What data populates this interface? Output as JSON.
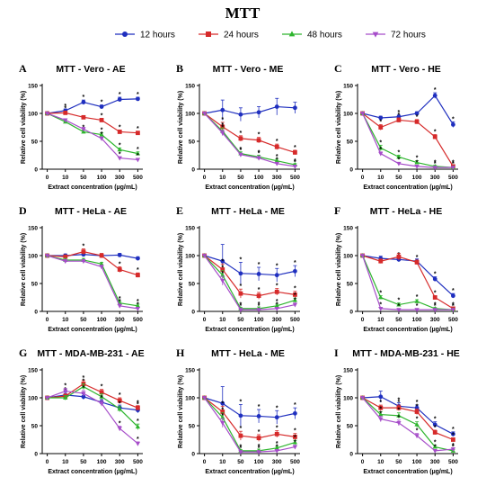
{
  "figure": {
    "title": "MTT",
    "legend": [
      {
        "name": "12 hours",
        "color": "#1f2fbf",
        "marker": "circle"
      },
      {
        "name": "24 hours",
        "color": "#d62a2a",
        "marker": "square"
      },
      {
        "name": "48 hours",
        "color": "#2db52d",
        "marker": "triangle"
      },
      {
        "name": "72 hours",
        "color": "#a64dc9",
        "marker": "triangle-down"
      }
    ]
  },
  "chart_data": [
    {
      "letter": "A",
      "title": "MTT - Vero - AE",
      "type": "line",
      "xlabel": "Extract concentration (µg/mL)",
      "ylabel": "Relative cell viability (%)",
      "categories": [
        "0",
        "10",
        "50",
        "100",
        "300",
        "500"
      ],
      "ylim": [
        0,
        150
      ],
      "yticks": [
        0,
        50,
        100,
        150
      ],
      "series": [
        {
          "name": "12 hours",
          "values": [
            100,
            105,
            120,
            112,
            125,
            126
          ],
          "err": [
            0,
            3,
            4,
            3,
            4,
            3
          ],
          "stars": [
            0,
            1,
            1,
            1,
            1,
            1
          ]
        },
        {
          "name": "24 hours",
          "values": [
            100,
            101,
            93,
            88,
            67,
            65
          ],
          "err": [
            0,
            3,
            3,
            3,
            3,
            3
          ],
          "stars": [
            0,
            1,
            0,
            1,
            1,
            1
          ]
        },
        {
          "name": "48 hours",
          "values": [
            100,
            85,
            67,
            62,
            35,
            28
          ],
          "err": [
            0,
            2,
            3,
            3,
            3,
            3
          ],
          "stars": [
            0,
            0,
            1,
            1,
            1,
            1
          ]
        },
        {
          "name": "72 hours",
          "values": [
            100,
            88,
            72,
            55,
            20,
            17
          ],
          "err": [
            0,
            2,
            3,
            3,
            2,
            2
          ],
          "stars": [
            0,
            0,
            0,
            1,
            1,
            1
          ]
        }
      ]
    },
    {
      "letter": "B",
      "title": "MTT - Vero - ME",
      "type": "line",
      "xlabel": "Extract concentration (µg/mL)",
      "ylabel": "Relative cell viability (%)",
      "categories": [
        "0",
        "10",
        "50",
        "100",
        "300",
        "500"
      ],
      "ylim": [
        0,
        150
      ],
      "yticks": [
        0,
        50,
        100,
        150
      ],
      "series": [
        {
          "name": "12 hours",
          "values": [
            100,
            106,
            98,
            102,
            112,
            110
          ],
          "err": [
            0,
            18,
            12,
            10,
            15,
            10
          ],
          "stars": [
            0,
            0,
            0,
            0,
            0,
            0
          ]
        },
        {
          "name": "24 hours",
          "values": [
            100,
            76,
            55,
            52,
            40,
            30
          ],
          "err": [
            0,
            8,
            5,
            5,
            5,
            4
          ],
          "stars": [
            0,
            1,
            1,
            1,
            1,
            1
          ]
        },
        {
          "name": "48 hours",
          "values": [
            100,
            68,
            28,
            22,
            15,
            8
          ],
          "err": [
            0,
            6,
            3,
            3,
            3,
            2
          ],
          "stars": [
            0,
            1,
            1,
            1,
            1,
            1
          ]
        },
        {
          "name": "72 hours",
          "values": [
            100,
            65,
            26,
            20,
            10,
            5
          ],
          "err": [
            0,
            5,
            3,
            3,
            2,
            2
          ],
          "stars": [
            0,
            1,
            1,
            1,
            1,
            1
          ]
        }
      ]
    },
    {
      "letter": "C",
      "title": "MTT - Vero - HE",
      "type": "line",
      "xlabel": "Extract concentration (µg/mL)",
      "ylabel": "Relative cell viability (%)",
      "categories": [
        "0",
        "10",
        "50",
        "100",
        "300",
        "500"
      ],
      "ylim": [
        0,
        150
      ],
      "yticks": [
        0,
        50,
        100,
        150
      ],
      "series": [
        {
          "name": "12 hours",
          "values": [
            100,
            92,
            94,
            100,
            132,
            80
          ],
          "err": [
            0,
            3,
            3,
            3,
            5,
            5
          ],
          "stars": [
            0,
            0,
            1,
            0,
            1,
            1
          ]
        },
        {
          "name": "24 hours",
          "values": [
            100,
            75,
            88,
            85,
            58,
            5
          ],
          "err": [
            0,
            5,
            4,
            4,
            4,
            2
          ],
          "stars": [
            0,
            1,
            1,
            1,
            1,
            1
          ]
        },
        {
          "name": "48 hours",
          "values": [
            100,
            38,
            22,
            12,
            5,
            3
          ],
          "err": [
            0,
            5,
            3,
            3,
            2,
            2
          ],
          "stars": [
            0,
            1,
            1,
            1,
            1,
            1
          ]
        },
        {
          "name": "72 hours",
          "values": [
            100,
            28,
            10,
            5,
            3,
            3
          ],
          "err": [
            0,
            3,
            2,
            2,
            2,
            2
          ],
          "stars": [
            0,
            1,
            1,
            1,
            1,
            1
          ]
        }
      ]
    },
    {
      "letter": "D",
      "title": "MTT - HeLa - AE",
      "type": "line",
      "xlabel": "Extract concentration (µg/mL)",
      "ylabel": "Relative cell viability (%)",
      "categories": [
        "0",
        "10",
        "50",
        "100",
        "300",
        "500"
      ],
      "ylim": [
        0,
        150
      ],
      "yticks": [
        0,
        50,
        100,
        150
      ],
      "series": [
        {
          "name": "12 hours",
          "values": [
            100,
            100,
            102,
            100,
            101,
            95
          ],
          "err": [
            0,
            3,
            3,
            3,
            3,
            3
          ],
          "stars": [
            0,
            0,
            0,
            0,
            0,
            0
          ]
        },
        {
          "name": "24 hours",
          "values": [
            100,
            98,
            107,
            100,
            75,
            65
          ],
          "err": [
            0,
            3,
            5,
            4,
            5,
            4
          ],
          "stars": [
            0,
            0,
            1,
            0,
            1,
            1
          ]
        },
        {
          "name": "48 hours",
          "values": [
            100,
            92,
            92,
            85,
            15,
            10
          ],
          "err": [
            0,
            3,
            3,
            3,
            3,
            3
          ],
          "stars": [
            0,
            0,
            0,
            0,
            1,
            1
          ]
        },
        {
          "name": "72 hours",
          "values": [
            100,
            90,
            90,
            80,
            10,
            5
          ],
          "err": [
            0,
            3,
            3,
            3,
            3,
            2
          ],
          "stars": [
            0,
            0,
            0,
            0,
            1,
            1
          ]
        }
      ]
    },
    {
      "letter": "E",
      "title": "MTT - HeLa - ME",
      "type": "line",
      "xlabel": "Extract concentration (µg/mL)",
      "ylabel": "Relative cell viability (%)",
      "categories": [
        "0",
        "10",
        "50",
        "100",
        "300",
        "500"
      ],
      "ylim": [
        0,
        150
      ],
      "yticks": [
        0,
        50,
        100,
        150
      ],
      "series": [
        {
          "name": "12 hours",
          "values": [
            100,
            90,
            68,
            67,
            65,
            72
          ],
          "err": [
            0,
            30,
            20,
            12,
            12,
            10
          ],
          "stars": [
            0,
            0,
            1,
            1,
            1,
            1
          ]
        },
        {
          "name": "24 hours",
          "values": [
            100,
            75,
            32,
            28,
            35,
            30
          ],
          "err": [
            0,
            10,
            8,
            6,
            6,
            6
          ],
          "stars": [
            0,
            1,
            1,
            1,
            1,
            1
          ]
        },
        {
          "name": "48 hours",
          "values": [
            100,
            65,
            5,
            5,
            10,
            20
          ],
          "err": [
            0,
            8,
            2,
            3,
            3,
            4
          ],
          "stars": [
            0,
            1,
            1,
            1,
            1,
            1
          ]
        },
        {
          "name": "72 hours",
          "values": [
            100,
            55,
            3,
            3,
            5,
            12
          ],
          "err": [
            0,
            8,
            2,
            2,
            2,
            3
          ],
          "stars": [
            0,
            1,
            1,
            1,
            1,
            1
          ]
        }
      ]
    },
    {
      "letter": "F",
      "title": "MTT - HeLa - HE",
      "type": "line",
      "xlabel": "Extract concentration (µg/mL)",
      "ylabel": "Relative cell viability (%)",
      "categories": [
        "0",
        "10",
        "50",
        "100",
        "300",
        "500"
      ],
      "ylim": [
        0,
        150
      ],
      "yticks": [
        0,
        50,
        100,
        150
      ],
      "series": [
        {
          "name": "12 hours",
          "values": [
            100,
            95,
            93,
            90,
            58,
            28
          ],
          "err": [
            0,
            4,
            4,
            4,
            4,
            4
          ],
          "stars": [
            0,
            0,
            1,
            0,
            1,
            1
          ]
        },
        {
          "name": "24 hours",
          "values": [
            100,
            90,
            98,
            88,
            25,
            5
          ],
          "err": [
            0,
            4,
            6,
            4,
            3,
            2
          ],
          "stars": [
            0,
            0,
            0,
            1,
            1,
            1
          ]
        },
        {
          "name": "48 hours",
          "values": [
            100,
            25,
            12,
            18,
            5,
            3
          ],
          "err": [
            0,
            3,
            3,
            3,
            2,
            2
          ],
          "stars": [
            0,
            1,
            1,
            1,
            1,
            1
          ]
        },
        {
          "name": "72 hours",
          "values": [
            100,
            5,
            3,
            3,
            3,
            3
          ],
          "err": [
            0,
            2,
            2,
            2,
            2,
            2
          ],
          "stars": [
            0,
            1,
            1,
            1,
            1,
            1
          ]
        }
      ]
    },
    {
      "letter": "G",
      "title": "MTT - MDA-MB-231 - AE",
      "type": "line",
      "xlabel": "Extract concentration (µg/mL)",
      "ylabel": "Relative cell viability (%)",
      "categories": [
        "0",
        "10",
        "50",
        "100",
        "300",
        "500"
      ],
      "ylim": [
        0,
        150
      ],
      "yticks": [
        0,
        50,
        100,
        150
      ],
      "series": [
        {
          "name": "12 hours",
          "values": [
            100,
            105,
            102,
            92,
            82,
            78
          ],
          "err": [
            0,
            5,
            5,
            5,
            5,
            5
          ],
          "stars": [
            0,
            1,
            0,
            1,
            1,
            1
          ]
        },
        {
          "name": "24 hours",
          "values": [
            100,
            103,
            125,
            110,
            95,
            82
          ],
          "err": [
            0,
            4,
            6,
            5,
            5,
            4
          ],
          "stars": [
            0,
            1,
            1,
            1,
            1,
            1
          ]
        },
        {
          "name": "48 hours",
          "values": [
            100,
            100,
            120,
            102,
            80,
            48
          ],
          "err": [
            0,
            4,
            5,
            5,
            5,
            5
          ],
          "stars": [
            0,
            0,
            1,
            0,
            1,
            1
          ]
        },
        {
          "name": "72 hours",
          "values": [
            100,
            112,
            108,
            90,
            45,
            18
          ],
          "err": [
            0,
            5,
            5,
            5,
            4,
            3
          ],
          "stars": [
            0,
            1,
            1,
            1,
            1,
            1
          ]
        }
      ]
    },
    {
      "letter": "H",
      "title": "MTT - HeLa - ME",
      "type": "line",
      "xlabel": "Extract concentration (µg/mL)",
      "ylabel": "Relative cell viability (%)",
      "categories": [
        "0",
        "10",
        "50",
        "100",
        "300",
        "500"
      ],
      "ylim": [
        0,
        150
      ],
      "yticks": [
        0,
        50,
        100,
        150
      ],
      "series": [
        {
          "name": "12 hours",
          "values": [
            100,
            90,
            68,
            67,
            65,
            72
          ],
          "err": [
            0,
            30,
            20,
            12,
            12,
            10
          ],
          "stars": [
            0,
            0,
            1,
            1,
            1,
            1
          ]
        },
        {
          "name": "24 hours",
          "values": [
            100,
            75,
            32,
            28,
            35,
            30
          ],
          "err": [
            0,
            10,
            8,
            6,
            6,
            6
          ],
          "stars": [
            0,
            1,
            1,
            1,
            1,
            1
          ]
        },
        {
          "name": "48 hours",
          "values": [
            100,
            65,
            5,
            5,
            10,
            20
          ],
          "err": [
            0,
            8,
            2,
            3,
            3,
            4
          ],
          "stars": [
            0,
            1,
            1,
            1,
            1,
            1
          ]
        },
        {
          "name": "72 hours",
          "values": [
            100,
            55,
            3,
            3,
            5,
            12
          ],
          "err": [
            0,
            8,
            2,
            2,
            2,
            3
          ],
          "stars": [
            0,
            1,
            1,
            1,
            1,
            1
          ]
        }
      ]
    },
    {
      "letter": "I",
      "title": "MTT - MDA-MB-231 - HE",
      "type": "line",
      "xlabel": "Extract concentration (µg/mL)",
      "ylabel": "Relative cell viability (%)",
      "categories": [
        "0",
        "10",
        "50",
        "100",
        "300",
        "500"
      ],
      "ylim": [
        0,
        150
      ],
      "yticks": [
        0,
        50,
        100,
        150
      ],
      "series": [
        {
          "name": "12 hours",
          "values": [
            100,
            102,
            85,
            82,
            52,
            35
          ],
          "err": [
            0,
            10,
            6,
            5,
            5,
            4
          ],
          "stars": [
            0,
            0,
            1,
            1,
            1,
            1
          ]
        },
        {
          "name": "24 hours",
          "values": [
            100,
            82,
            82,
            75,
            38,
            25
          ],
          "err": [
            0,
            5,
            5,
            5,
            4,
            3
          ],
          "stars": [
            0,
            1,
            1,
            1,
            1,
            1
          ]
        },
        {
          "name": "48 hours",
          "values": [
            100,
            70,
            68,
            52,
            12,
            5
          ],
          "err": [
            0,
            5,
            5,
            5,
            3,
            2
          ],
          "stars": [
            0,
            1,
            1,
            1,
            1,
            1
          ]
        },
        {
          "name": "72 hours",
          "values": [
            100,
            62,
            55,
            32,
            5,
            8
          ],
          "err": [
            0,
            5,
            5,
            4,
            2,
            2
          ],
          "stars": [
            0,
            1,
            1,
            1,
            1,
            1
          ]
        }
      ]
    }
  ]
}
